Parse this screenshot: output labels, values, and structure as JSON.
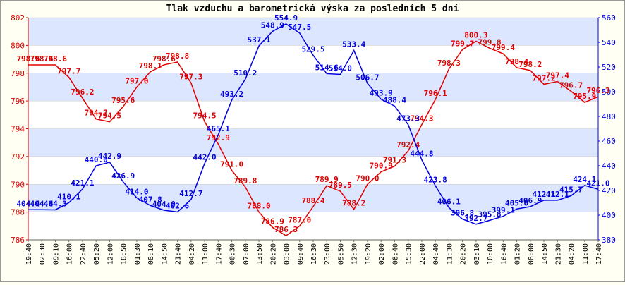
{
  "chart_data": {
    "type": "line",
    "title": "Tlak vzduchu a barometrická výska za posledních 5 dní",
    "xticks": [
      "19:40",
      "02:30",
      "09:10",
      "16:00",
      "22:40",
      "05:20",
      "12:00",
      "18:50",
      "01:30",
      "08:10",
      "14:50",
      "21:40",
      "04:20",
      "11:00",
      "17:40",
      "00:30",
      "07:00",
      "13:50",
      "20:20",
      "03:00",
      "09:40",
      "16:30",
      "23:00",
      "05:50",
      "12:30",
      "19:20",
      "02:00",
      "08:40",
      "15:30",
      "22:00",
      "04:40",
      "11:30",
      "20:20",
      "03:10",
      "10:00",
      "16:40",
      "01:20",
      "08:00",
      "14:50",
      "21:30",
      "04:20",
      "11:00",
      "17:40"
    ],
    "ylim": [
      786,
      802
    ],
    "yticks": [
      786,
      788,
      790,
      792,
      794,
      796,
      798,
      800,
      802
    ],
    "y2lim": [
      380,
      560
    ],
    "y2ticks": [
      380,
      400,
      420,
      440,
      460,
      480,
      500,
      520,
      540,
      560
    ],
    "band_colors": [
      "#dde6ff",
      "#ffffff"
    ],
    "series": [
      {
        "name": "Tlak vzduchu",
        "color": "#e00000",
        "axis": "y",
        "values": [
          798.6,
          798.6,
          798.6,
          797.7,
          796.2,
          794.7,
          794.5,
          795.6,
          797.0,
          798.1,
          798.6,
          798.8,
          797.3,
          794.5,
          792.9,
          791.0,
          789.8,
          788.0,
          786.9,
          786.3,
          787.0,
          788.4,
          789.9,
          789.5,
          788.2,
          790.0,
          790.9,
          791.3,
          792.4,
          794.3,
          796.1,
          798.3,
          799.7,
          800.3,
          799.8,
          799.4,
          798.4,
          798.2,
          797.2,
          797.4,
          796.7,
          795.9,
          796.3
        ],
        "value_labels": [
          "798.6",
          "798.6",
          "798.6",
          "797.7",
          "796.2",
          "794.7",
          "794.5",
          "795.6",
          "797.0",
          "798.1",
          "798.6",
          "798.8",
          "797.3",
          "794.5",
          "792.9",
          "791.0",
          "789.8",
          "788.0",
          "786.9",
          "786.3",
          "787.0",
          "788.4",
          "789.9",
          "789.5",
          "788.2",
          "790.0",
          "790.9",
          "791.3",
          "792.4",
          "794.3",
          "796.1",
          "798.3",
          "799.7",
          "800.3",
          "799.8",
          "799.4",
          "798.4",
          "798.2",
          "797.2",
          "797.4",
          "796.7",
          "795.9",
          "796.3"
        ]
      },
      {
        "name": "Barometrická výska",
        "color": "#0000e0",
        "axis": "y2",
        "values": [
          404.4,
          404.4,
          404.3,
          410.1,
          421.1,
          440.0,
          442.9,
          426.9,
          414.0,
          407.8,
          404.0,
          402.6,
          412.7,
          442.0,
          465.1,
          493.2,
          510.2,
          537.1,
          548.9,
          554.9,
          547.5,
          529.5,
          514.6,
          514.0,
          533.4,
          506.7,
          493.9,
          488.4,
          473.3,
          444.8,
          423.8,
          406.1,
          396.8,
          392.7,
          395.8,
          399.1,
          405.0,
          406.9,
          412.1,
          412.1,
          415.7,
          424.1,
          421.0
        ],
        "value_labels": [
          "404.4",
          "404.4",
          "404.3",
          "410.1",
          "421.1",
          "440.0",
          "442.9",
          "426.9",
          "414.0",
          "407.8",
          "404.0",
          "402.6",
          "412.7",
          "442.0",
          "465.1",
          "493.2",
          "510.2",
          "537.1",
          "548.9",
          "554.9",
          "547.5",
          "529.5",
          "514.6",
          "514.0",
          "533.4",
          "506.7",
          "493.9",
          "488.4",
          "473.3",
          "444.8",
          "423.8",
          "406.1",
          "396.8",
          "392.7",
          "395.8",
          "399.1",
          "405.0",
          "406.9",
          "412.1",
          "412.1",
          "415.7",
          "424.1",
          "421.0"
        ]
      }
    ]
  }
}
